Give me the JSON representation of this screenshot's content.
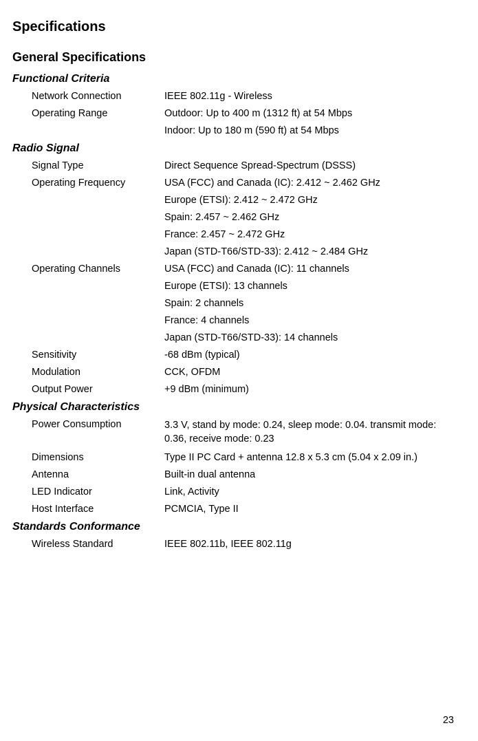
{
  "mainTitle": "Specifications",
  "subTitle": "General Specifications",
  "pageNumber": "23",
  "sections": {
    "functionalCriteria": {
      "title": "Functional Criteria",
      "rows": {
        "networkConnection": {
          "label": "Network Connection",
          "value": "IEEE 802.11g - Wireless"
        },
        "operatingRange": {
          "label": "Operating Range",
          "values": [
            "Outdoor: Up to 400 m (1312 ft) at 54 Mbps",
            "Indoor: Up to 180 m (590 ft) at 54 Mbps"
          ]
        }
      }
    },
    "radioSignal": {
      "title": "Radio Signal",
      "rows": {
        "signalType": {
          "label": "Signal Type",
          "value": "Direct Sequence Spread-Spectrum (DSSS)"
        },
        "operatingFrequency": {
          "label": "Operating Frequency",
          "values": [
            "USA (FCC) and Canada (IC): 2.412 ~ 2.462 GHz",
            "Europe (ETSI): 2.412 ~ 2.472 GHz",
            "Spain: 2.457 ~ 2.462 GHz",
            "France: 2.457 ~ 2.472 GHz",
            "Japan (STD-T66/STD-33): 2.412 ~ 2.484 GHz"
          ]
        },
        "operatingChannels": {
          "label": "Operating Channels",
          "values": [
            "USA (FCC) and Canada (IC): 11 channels",
            "Europe (ETSI): 13 channels",
            "Spain: 2 channels",
            "France: 4 channels",
            "Japan (STD-T66/STD-33): 14 channels"
          ]
        },
        "sensitivity": {
          "label": "Sensitivity",
          "value": "-68 dBm (typical)"
        },
        "modulation": {
          "label": "Modulation",
          "value": "CCK, OFDM"
        },
        "outputPower": {
          "label": "Output Power",
          "value": "+9 dBm (minimum)"
        }
      }
    },
    "physicalCharacteristics": {
      "title": "Physical Characteristics",
      "rows": {
        "powerConsumption": {
          "label": "Power Consumption",
          "value": "3.3 V, stand by mode: 0.24, sleep mode: 0.04. transmit mode: 0.36, receive mode: 0.23"
        },
        "dimensions": {
          "label": "Dimensions",
          "value": "Type II PC Card + antenna 12.8 x 5.3 cm (5.04 x 2.09 in.)"
        },
        "antenna": {
          "label": "Antenna",
          "value": "Built-in dual antenna"
        },
        "ledIndicator": {
          "label": "LED Indicator",
          "value": "Link, Activity"
        },
        "hostInterface": {
          "label": "Host Interface",
          "value": "PCMCIA, Type II"
        }
      }
    },
    "standardsConformance": {
      "title": "Standards Conformance",
      "rows": {
        "wirelessStandard": {
          "label": "Wireless Standard",
          "value": "IEEE 802.11b, IEEE 802.11g"
        }
      }
    }
  }
}
